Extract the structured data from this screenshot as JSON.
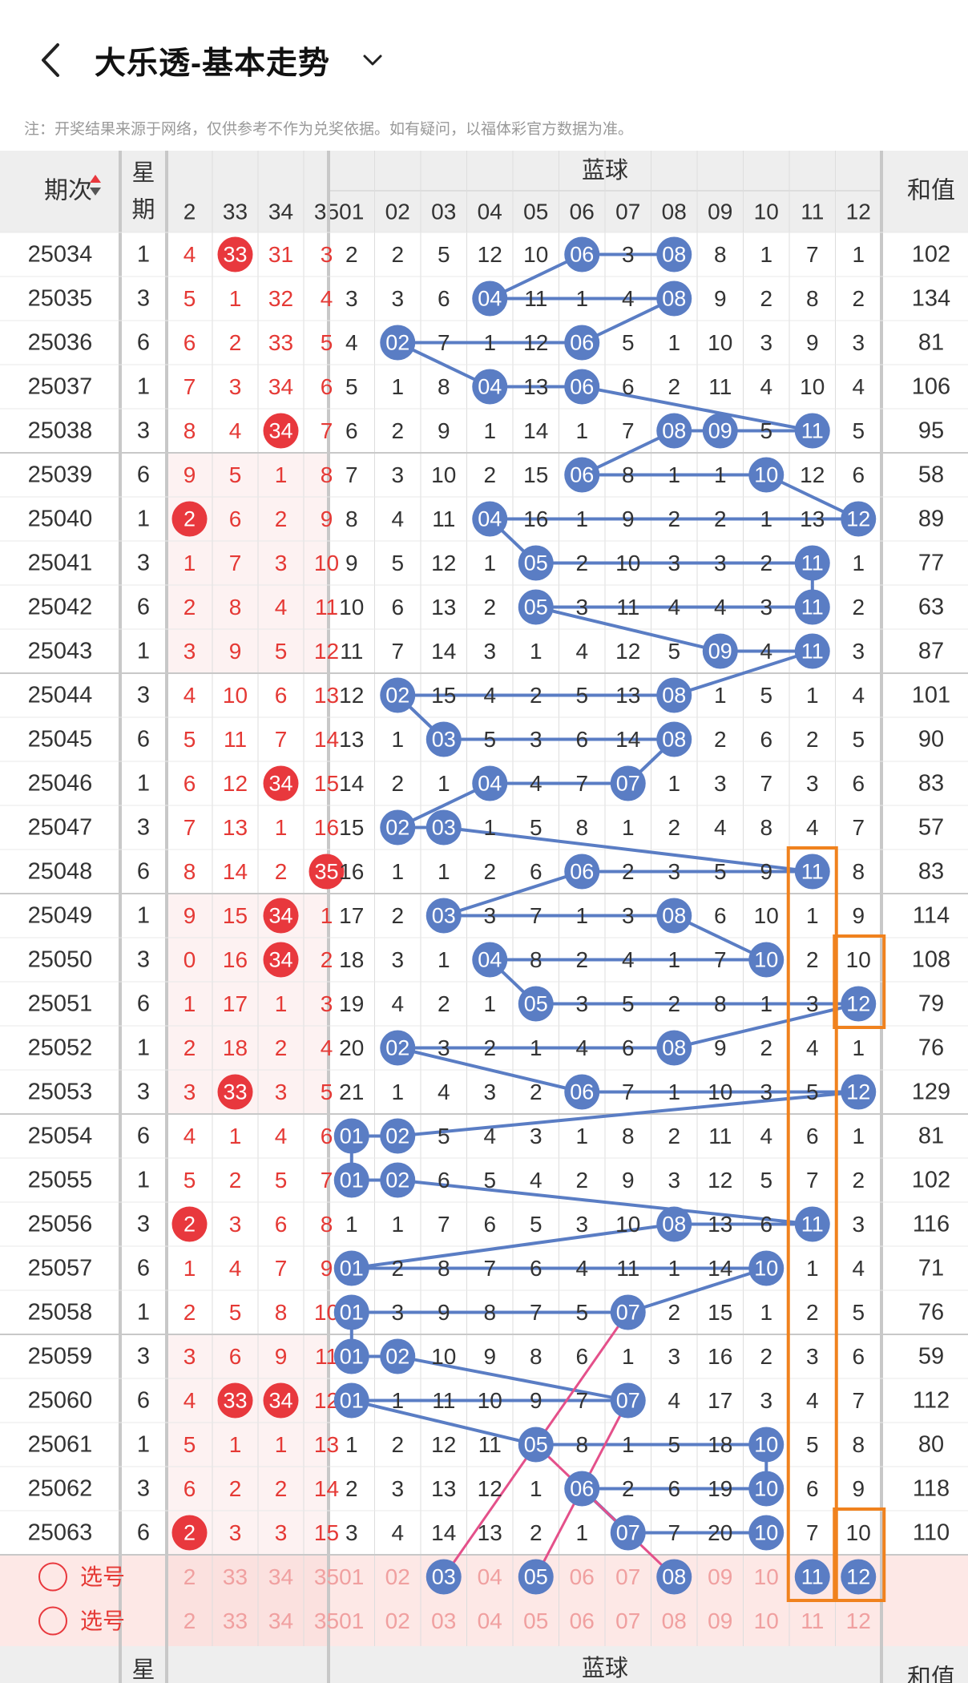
{
  "header": {
    "title": "大乐透-基本走势",
    "notice": "注：开奖结果来源于网络，仅供参考不作为兑奖依据。如有疑问，以福体彩官方数据为准。"
  },
  "table": {
    "col_issue": "期次",
    "col_week": "星期",
    "col_blue": "蓝球",
    "col_sum": "和值",
    "front_headers": [
      "2",
      "33",
      "34",
      "35"
    ],
    "blue_headers": [
      "01",
      "02",
      "03",
      "04",
      "05",
      "06",
      "07",
      "08",
      "09",
      "10",
      "11",
      "12"
    ],
    "rows": [
      {
        "issue": "25034",
        "week": "1",
        "front": [
          "4",
          "33",
          "31",
          "3"
        ],
        "fhit": [
          false,
          true,
          false,
          false
        ],
        "blue": [
          "2",
          "2",
          "5",
          "12",
          "10",
          "06",
          "3",
          "08",
          "8",
          "1",
          "7",
          "1"
        ],
        "sum": "102"
      },
      {
        "issue": "25035",
        "week": "3",
        "front": [
          "5",
          "1",
          "32",
          "4"
        ],
        "fhit": [
          false,
          false,
          false,
          false
        ],
        "blue": [
          "3",
          "3",
          "6",
          "04",
          "11",
          "1",
          "4",
          "08",
          "9",
          "2",
          "8",
          "2"
        ],
        "sum": "134"
      },
      {
        "issue": "25036",
        "week": "6",
        "front": [
          "6",
          "2",
          "33",
          "5"
        ],
        "fhit": [
          false,
          false,
          false,
          false
        ],
        "blue": [
          "4",
          "02",
          "7",
          "1",
          "12",
          "06",
          "5",
          "1",
          "10",
          "3",
          "9",
          "3"
        ],
        "sum": "81"
      },
      {
        "issue": "25037",
        "week": "1",
        "front": [
          "7",
          "3",
          "34",
          "6"
        ],
        "fhit": [
          false,
          false,
          false,
          false
        ],
        "blue": [
          "5",
          "1",
          "8",
          "04",
          "13",
          "06",
          "6",
          "2",
          "11",
          "4",
          "10",
          "4"
        ],
        "sum": "106"
      },
      {
        "issue": "25038",
        "week": "3",
        "front": [
          "8",
          "4",
          "34",
          "7"
        ],
        "fhit": [
          false,
          false,
          true,
          false
        ],
        "blue": [
          "6",
          "2",
          "9",
          "1",
          "14",
          "1",
          "7",
          "08",
          "09",
          "5",
          "11",
          "5"
        ],
        "sum": "95"
      },
      {
        "issue": "25039",
        "week": "6",
        "front": [
          "9",
          "5",
          "1",
          "8"
        ],
        "fhit": [
          false,
          false,
          false,
          false
        ],
        "blue": [
          "7",
          "3",
          "10",
          "2",
          "15",
          "06",
          "8",
          "1",
          "1",
          "10",
          "12",
          "6"
        ],
        "sum": "58"
      },
      {
        "issue": "25040",
        "week": "1",
        "front": [
          "2",
          "6",
          "2",
          "9"
        ],
        "fhit": [
          true,
          false,
          false,
          false
        ],
        "blue": [
          "8",
          "4",
          "11",
          "04",
          "16",
          "1",
          "9",
          "2",
          "2",
          "1",
          "13",
          "12"
        ],
        "sum": "89"
      },
      {
        "issue": "25041",
        "week": "3",
        "front": [
          "1",
          "7",
          "3",
          "10"
        ],
        "fhit": [
          false,
          false,
          false,
          false
        ],
        "blue": [
          "9",
          "5",
          "12",
          "1",
          "05",
          "2",
          "10",
          "3",
          "3",
          "2",
          "11",
          "1"
        ],
        "sum": "77"
      },
      {
        "issue": "25042",
        "week": "6",
        "front": [
          "2",
          "8",
          "4",
          "11"
        ],
        "fhit": [
          false,
          false,
          false,
          false
        ],
        "blue": [
          "10",
          "6",
          "13",
          "2",
          "05",
          "3",
          "11",
          "4",
          "4",
          "3",
          "11",
          "2"
        ],
        "sum": "63"
      },
      {
        "issue": "25043",
        "week": "1",
        "front": [
          "3",
          "9",
          "5",
          "12"
        ],
        "fhit": [
          false,
          false,
          false,
          false
        ],
        "blue": [
          "11",
          "7",
          "14",
          "3",
          "1",
          "4",
          "12",
          "5",
          "09",
          "4",
          "11",
          "3"
        ],
        "sum": "87"
      },
      {
        "issue": "25044",
        "week": "3",
        "front": [
          "4",
          "10",
          "6",
          "13"
        ],
        "fhit": [
          false,
          false,
          false,
          false
        ],
        "blue": [
          "12",
          "02",
          "15",
          "4",
          "2",
          "5",
          "13",
          "08",
          "1",
          "5",
          "1",
          "4"
        ],
        "sum": "101"
      },
      {
        "issue": "25045",
        "week": "6",
        "front": [
          "5",
          "11",
          "7",
          "14"
        ],
        "fhit": [
          false,
          false,
          false,
          false
        ],
        "blue": [
          "13",
          "1",
          "03",
          "5",
          "3",
          "6",
          "14",
          "08",
          "2",
          "6",
          "2",
          "5"
        ],
        "sum": "90"
      },
      {
        "issue": "25046",
        "week": "1",
        "front": [
          "6",
          "12",
          "34",
          "15"
        ],
        "fhit": [
          false,
          false,
          true,
          false
        ],
        "blue": [
          "14",
          "2",
          "1",
          "04",
          "4",
          "7",
          "07",
          "1",
          "3",
          "7",
          "3",
          "6"
        ],
        "sum": "83"
      },
      {
        "issue": "25047",
        "week": "3",
        "front": [
          "7",
          "13",
          "1",
          "16"
        ],
        "fhit": [
          false,
          false,
          false,
          false
        ],
        "blue": [
          "15",
          "02",
          "03",
          "1",
          "5",
          "8",
          "1",
          "2",
          "4",
          "8",
          "4",
          "7"
        ],
        "sum": "57"
      },
      {
        "issue": "25048",
        "week": "6",
        "front": [
          "8",
          "14",
          "2",
          "35"
        ],
        "fhit": [
          false,
          false,
          false,
          true
        ],
        "blue": [
          "16",
          "1",
          "1",
          "2",
          "6",
          "06",
          "2",
          "3",
          "5",
          "9",
          "11",
          "8"
        ],
        "sum": "83"
      },
      {
        "issue": "25049",
        "week": "1",
        "front": [
          "9",
          "15",
          "34",
          "1"
        ],
        "fhit": [
          false,
          false,
          true,
          false
        ],
        "blue": [
          "17",
          "2",
          "03",
          "3",
          "7",
          "1",
          "3",
          "08",
          "6",
          "10",
          "1",
          "9"
        ],
        "sum": "114"
      },
      {
        "issue": "25050",
        "week": "3",
        "front": [
          "0",
          "16",
          "34",
          "2"
        ],
        "fhit": [
          false,
          false,
          true,
          false
        ],
        "blue": [
          "18",
          "3",
          "1",
          "04",
          "8",
          "2",
          "4",
          "1",
          "7",
          "10",
          "2",
          "10"
        ],
        "sum": "108"
      },
      {
        "issue": "25051",
        "week": "6",
        "front": [
          "1",
          "17",
          "1",
          "3"
        ],
        "fhit": [
          false,
          false,
          false,
          false
        ],
        "blue": [
          "19",
          "4",
          "2",
          "1",
          "05",
          "3",
          "5",
          "2",
          "8",
          "1",
          "3",
          "12"
        ],
        "sum": "79"
      },
      {
        "issue": "25052",
        "week": "1",
        "front": [
          "2",
          "18",
          "2",
          "4"
        ],
        "fhit": [
          false,
          false,
          false,
          false
        ],
        "blue": [
          "20",
          "02",
          "3",
          "2",
          "1",
          "4",
          "6",
          "08",
          "9",
          "2",
          "4",
          "1"
        ],
        "sum": "76"
      },
      {
        "issue": "25053",
        "week": "3",
        "front": [
          "3",
          "33",
          "3",
          "5"
        ],
        "fhit": [
          false,
          true,
          false,
          false
        ],
        "blue": [
          "21",
          "1",
          "4",
          "3",
          "2",
          "06",
          "7",
          "1",
          "10",
          "3",
          "5",
          "12"
        ],
        "sum": "129"
      },
      {
        "issue": "25054",
        "week": "6",
        "front": [
          "4",
          "1",
          "4",
          "6"
        ],
        "fhit": [
          false,
          false,
          false,
          false
        ],
        "blue": [
          "01",
          "02",
          "5",
          "4",
          "3",
          "1",
          "8",
          "2",
          "11",
          "4",
          "6",
          "1"
        ],
        "sum": "81"
      },
      {
        "issue": "25055",
        "week": "1",
        "front": [
          "5",
          "2",
          "5",
          "7"
        ],
        "fhit": [
          false,
          false,
          false,
          false
        ],
        "blue": [
          "01",
          "02",
          "6",
          "5",
          "4",
          "2",
          "9",
          "3",
          "12",
          "5",
          "7",
          "2"
        ],
        "sum": "102"
      },
      {
        "issue": "25056",
        "week": "3",
        "front": [
          "2",
          "3",
          "6",
          "8"
        ],
        "fhit": [
          true,
          false,
          false,
          false
        ],
        "blue": [
          "1",
          "1",
          "7",
          "6",
          "5",
          "3",
          "10",
          "08",
          "13",
          "6",
          "11",
          "3"
        ],
        "sum": "116"
      },
      {
        "issue": "25057",
        "week": "6",
        "front": [
          "1",
          "4",
          "7",
          "9"
        ],
        "fhit": [
          false,
          false,
          false,
          false
        ],
        "blue": [
          "01",
          "2",
          "8",
          "7",
          "6",
          "4",
          "11",
          "1",
          "14",
          "10",
          "1",
          "4"
        ],
        "sum": "71"
      },
      {
        "issue": "25058",
        "week": "1",
        "front": [
          "2",
          "5",
          "8",
          "10"
        ],
        "fhit": [
          false,
          false,
          false,
          false
        ],
        "blue": [
          "01",
          "3",
          "9",
          "8",
          "7",
          "5",
          "07",
          "2",
          "15",
          "1",
          "2",
          "5"
        ],
        "sum": "76"
      },
      {
        "issue": "25059",
        "week": "3",
        "front": [
          "3",
          "6",
          "9",
          "11"
        ],
        "fhit": [
          false,
          false,
          false,
          false
        ],
        "blue": [
          "01",
          "02",
          "10",
          "9",
          "8",
          "6",
          "1",
          "3",
          "16",
          "2",
          "3",
          "6"
        ],
        "sum": "59"
      },
      {
        "issue": "25060",
        "week": "6",
        "front": [
          "4",
          "33",
          "34",
          "12"
        ],
        "fhit": [
          false,
          true,
          true,
          false
        ],
        "blue": [
          "01",
          "1",
          "11",
          "10",
          "9",
          "7",
          "07",
          "4",
          "17",
          "3",
          "4",
          "7"
        ],
        "sum": "112"
      },
      {
        "issue": "25061",
        "week": "1",
        "front": [
          "5",
          "1",
          "1",
          "13"
        ],
        "fhit": [
          false,
          false,
          false,
          false
        ],
        "blue": [
          "1",
          "2",
          "12",
          "11",
          "05",
          "8",
          "1",
          "5",
          "18",
          "10",
          "5",
          "8"
        ],
        "sum": "80"
      },
      {
        "issue": "25062",
        "week": "3",
        "front": [
          "6",
          "2",
          "2",
          "14"
        ],
        "fhit": [
          false,
          false,
          false,
          false
        ],
        "blue": [
          "2",
          "3",
          "13",
          "12",
          "1",
          "06",
          "2",
          "6",
          "19",
          "10",
          "6",
          "9"
        ],
        "sum": "118"
      },
      {
        "issue": "25063",
        "week": "6",
        "front": [
          "2",
          "3",
          "3",
          "15"
        ],
        "fhit": [
          true,
          false,
          false,
          false
        ],
        "blue": [
          "3",
          "4",
          "14",
          "13",
          "2",
          "1",
          "07",
          "7",
          "20",
          "10",
          "7",
          "10"
        ],
        "sum": "110"
      }
    ],
    "select_label": "选号",
    "select_front": [
      "2",
      "33",
      "34",
      "35"
    ],
    "select_blue": [
      "01",
      "02",
      "03",
      "04",
      "05",
      "06",
      "07",
      "08",
      "09",
      "10",
      "11",
      "12"
    ],
    "selected_blue": [
      "03",
      "05",
      "08",
      "11",
      "12"
    ]
  },
  "colors": {
    "blue_ball": "#5a7dc4",
    "red_ball": "#e8383d",
    "red_text": "#e53935",
    "header_bg": "#eeeeee",
    "pink_line": "#e4508a",
    "orange_box": "#f0821e",
    "select_bg": "#fde8e6"
  }
}
